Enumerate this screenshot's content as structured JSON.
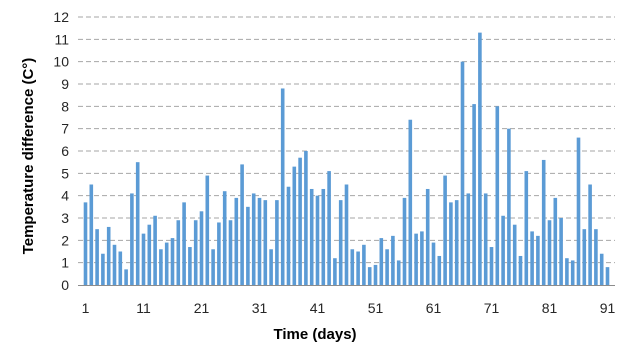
{
  "chart_data": {
    "type": "bar",
    "title": "",
    "xlabel": "Time (days)",
    "ylabel": "Temperature difference (C°)",
    "ylim": [
      0,
      12
    ],
    "yticks": [
      0,
      1,
      2,
      3,
      4,
      5,
      6,
      7,
      8,
      9,
      10,
      11,
      12
    ],
    "xticks": [
      1,
      11,
      21,
      31,
      41,
      51,
      61,
      71,
      81,
      91
    ],
    "grid": "horizontal dashed",
    "bar_color": "#5b9bd5",
    "x": [
      1,
      2,
      3,
      4,
      5,
      6,
      7,
      8,
      9,
      10,
      11,
      12,
      13,
      14,
      15,
      16,
      17,
      18,
      19,
      20,
      21,
      22,
      23,
      24,
      25,
      26,
      27,
      28,
      29,
      30,
      31,
      32,
      33,
      34,
      35,
      36,
      37,
      38,
      39,
      40,
      41,
      42,
      43,
      44,
      45,
      46,
      47,
      48,
      49,
      50,
      51,
      52,
      53,
      54,
      55,
      56,
      57,
      58,
      59,
      60,
      61,
      62,
      63,
      64,
      65,
      66,
      67,
      68,
      69,
      70,
      71,
      72,
      73,
      74,
      75,
      76,
      77,
      78,
      79,
      80,
      81,
      82,
      83,
      84,
      85,
      86,
      87,
      88,
      89,
      90,
      91
    ],
    "values": [
      3.7,
      4.5,
      2.5,
      1.4,
      2.6,
      1.8,
      1.5,
      0.7,
      4.1,
      5.5,
      2.3,
      2.7,
      3.1,
      1.6,
      1.9,
      2.1,
      2.9,
      3.7,
      1.7,
      2.9,
      3.3,
      4.9,
      1.6,
      2.8,
      4.2,
      2.9,
      3.9,
      5.4,
      3.5,
      4.1,
      3.9,
      3.8,
      1.6,
      3.8,
      8.8,
      4.4,
      5.3,
      5.7,
      6.0,
      4.3,
      4.0,
      4.3,
      5.1,
      1.2,
      3.8,
      4.5,
      1.6,
      1.5,
      1.8,
      0.8,
      0.9,
      2.1,
      1.6,
      2.2,
      1.1,
      3.9,
      7.4,
      2.3,
      2.4,
      4.3,
      1.9,
      1.3,
      4.9,
      3.7,
      3.8,
      10.0,
      4.1,
      8.1,
      11.3,
      4.1,
      1.7,
      8.0,
      3.1,
      7.0,
      2.7,
      1.3,
      5.1,
      2.4,
      2.2,
      5.6,
      2.9,
      3.9,
      3.0,
      1.2,
      1.1,
      6.6,
      2.5,
      4.5,
      2.5,
      1.4,
      0.8
    ]
  }
}
